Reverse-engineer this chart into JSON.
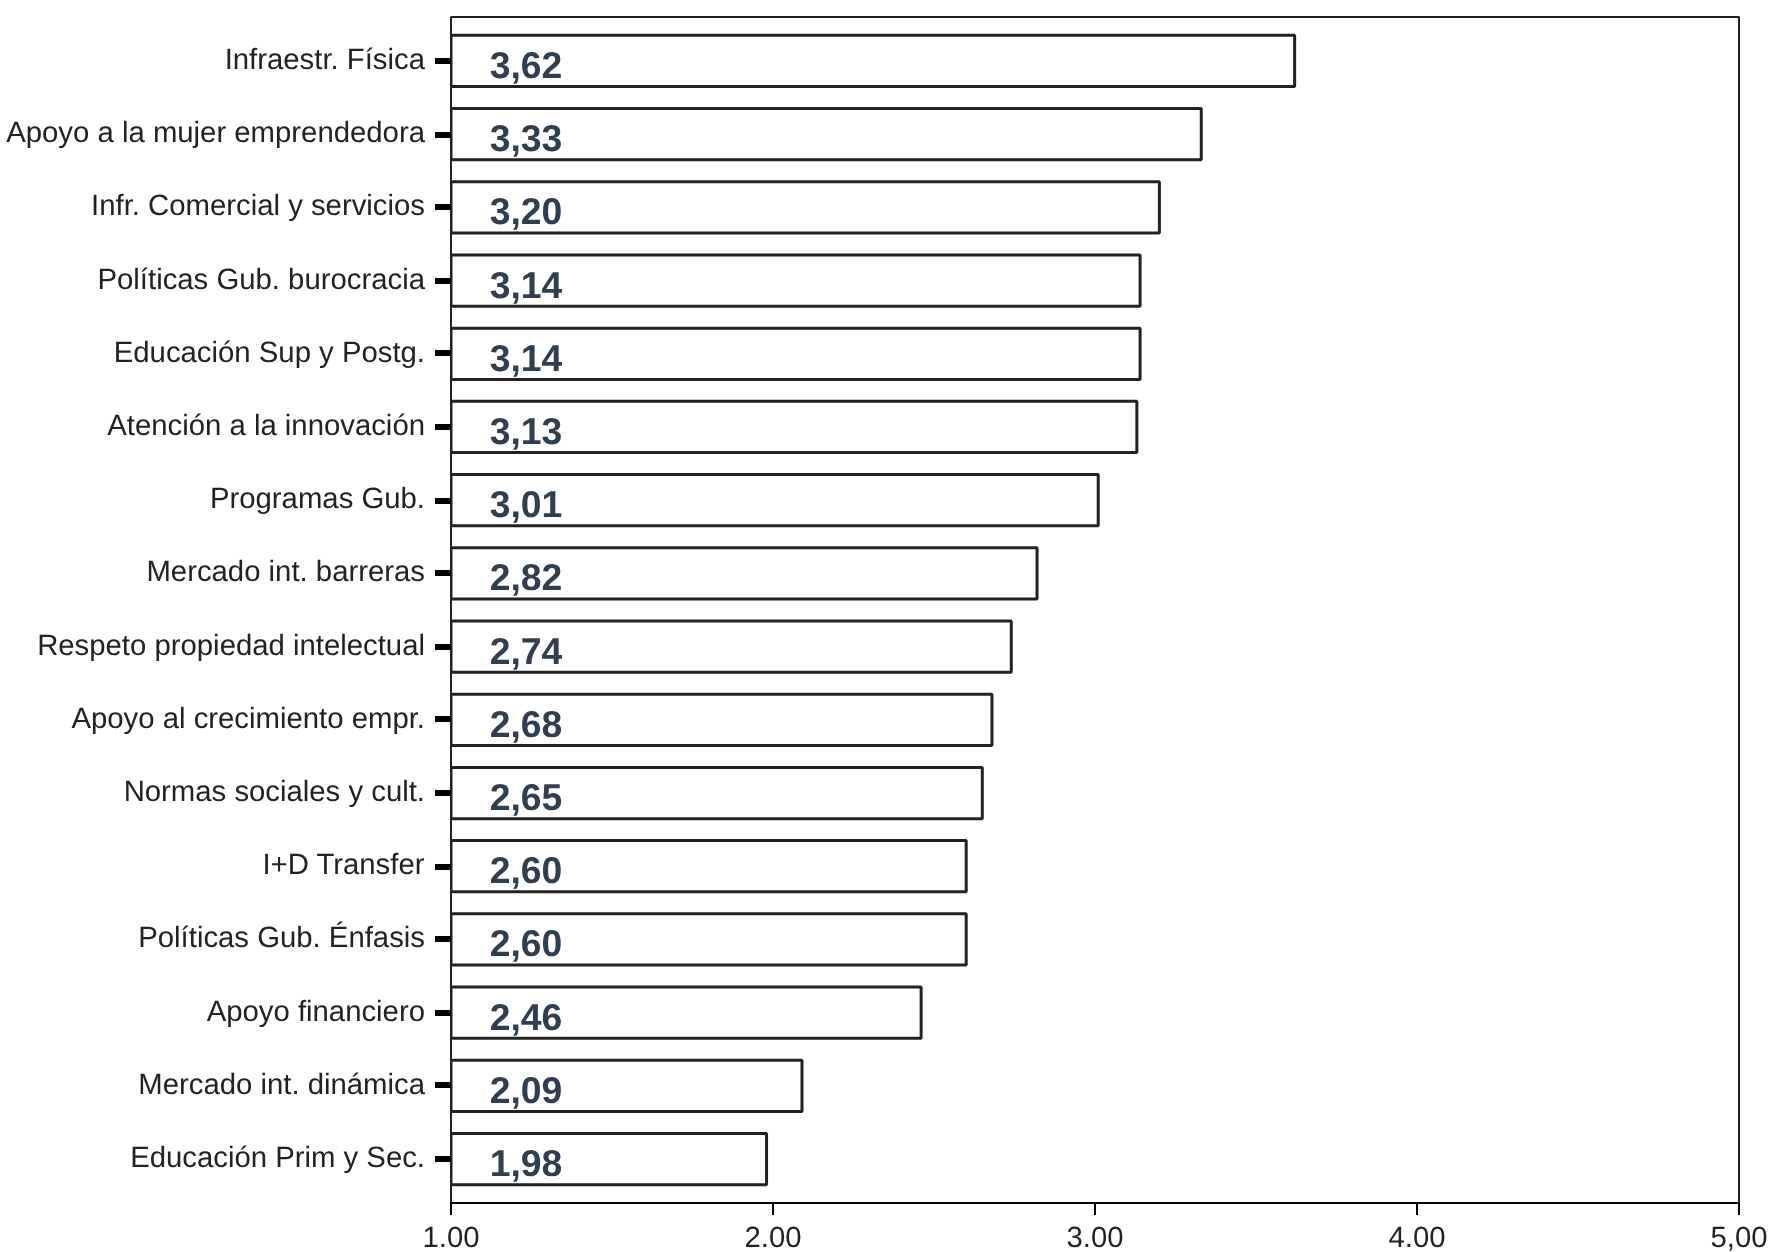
{
  "chart_data": {
    "type": "bar",
    "orientation": "horizontal",
    "categories": [
      "Infraestr. Física",
      "Apoyo a la mujer emprendedora",
      "Infr. Comercial y servicios",
      "Políticas Gub. burocracia",
      "Educación Sup y Postg.",
      "Atención a la innovación",
      "Programas Gub.",
      "Mercado int. barreras",
      "Respeto propiedad intelectual",
      "Apoyo al crecimiento empr.",
      "Normas sociales y cult.",
      "I+D Transfer",
      "Políticas Gub. Énfasis",
      "Apoyo financiero",
      "Mercado int. dinámica",
      "Educación Prim y Sec."
    ],
    "values": [
      3.62,
      3.33,
      3.2,
      3.14,
      3.14,
      3.13,
      3.01,
      2.82,
      2.74,
      2.68,
      2.65,
      2.6,
      2.6,
      2.46,
      2.09,
      1.98
    ],
    "value_labels": [
      "3,62",
      "3,33",
      "3,20",
      "3,14",
      "3,14",
      "3,13",
      "3,01",
      "2,82",
      "2,74",
      "2,68",
      "2,65",
      "2,60",
      "2,60",
      "2,46",
      "2,09",
      "1,98"
    ],
    "color": "#ffffff",
    "xlim": [
      1,
      5
    ],
    "xticks": [
      {
        "value": 1,
        "label": "1.00"
      },
      {
        "value": 2,
        "label": "2.00"
      },
      {
        "value": 3,
        "label": "3.00"
      },
      {
        "value": 4,
        "label": "4.00"
      },
      {
        "value": 5,
        "label": "5,00"
      }
    ],
    "grid": false
  }
}
